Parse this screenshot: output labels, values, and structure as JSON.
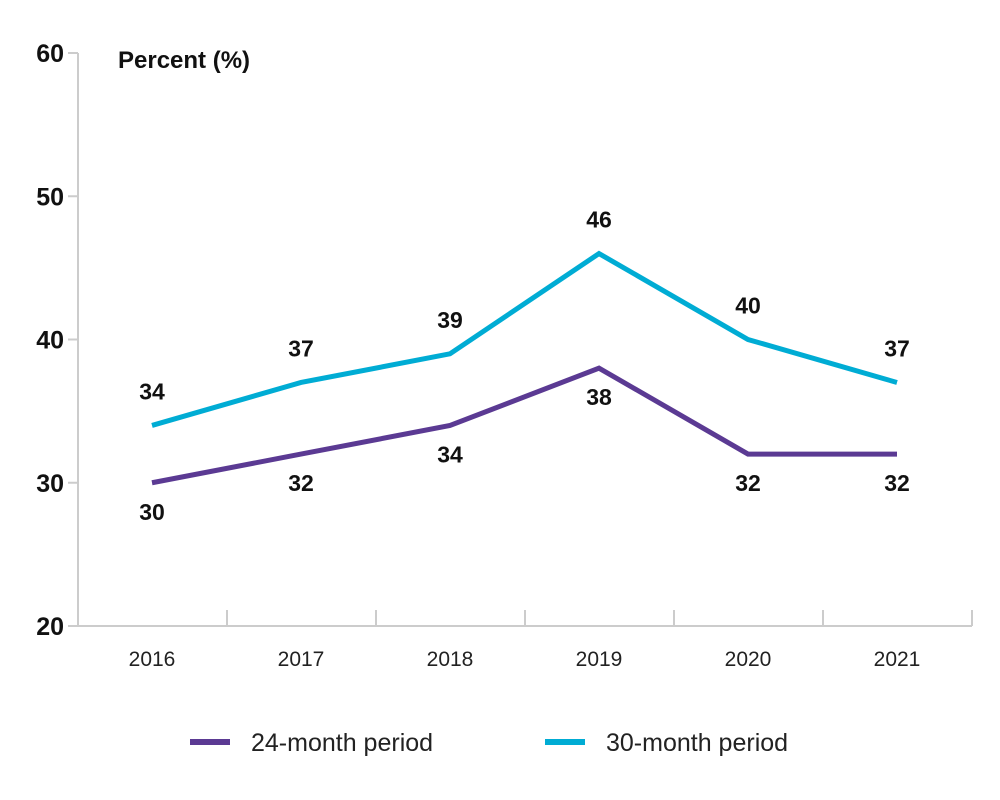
{
  "chart_data": {
    "type": "line",
    "ylabel": "Percent (%)",
    "xlabel": "",
    "categories": [
      "2016",
      "2017",
      "2018",
      "2019",
      "2020",
      "2021"
    ],
    "ylim": [
      20,
      60
    ],
    "yticks": [
      "20",
      "30",
      "40",
      "50",
      "60"
    ],
    "grid": false,
    "legend_position": "bottom",
    "series": [
      {
        "name": "24-month period",
        "color": "#5b3a93",
        "values": [
          30,
          32,
          34,
          38,
          32,
          32
        ],
        "label_placement": "below"
      },
      {
        "name": "30-month period",
        "color": "#00acd4",
        "values": [
          34,
          37,
          39,
          46,
          40,
          37
        ],
        "label_placement": "above"
      }
    ]
  }
}
